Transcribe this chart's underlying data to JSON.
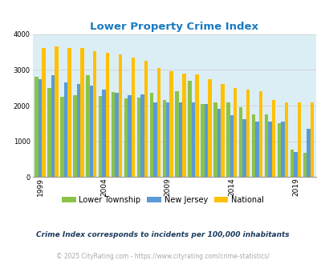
{
  "title": "Lower Property Crime Index",
  "subtitle": "Crime Index corresponds to incidents per 100,000 inhabitants",
  "footer": "© 2025 CityRating.com - https://www.cityrating.com/crime-statistics/",
  "years": [
    1999,
    2000,
    2001,
    2002,
    2003,
    2004,
    2005,
    2006,
    2007,
    2008,
    2009,
    2010,
    2011,
    2012,
    2013,
    2014,
    2015,
    2016,
    2017,
    2018,
    2019,
    2020
  ],
  "lower_township": [
    2800,
    2500,
    2250,
    2300,
    2850,
    2280,
    2380,
    2200,
    2220,
    2350,
    2150,
    2400,
    2700,
    2050,
    2100,
    2100,
    1950,
    1750,
    1750,
    1500,
    760,
    670
  ],
  "new_jersey": [
    2750,
    2850,
    2650,
    2600,
    2550,
    2450,
    2350,
    2300,
    2320,
    2100,
    2100,
    2080,
    2090,
    2050,
    1900,
    1720,
    1620,
    1550,
    1540,
    1540,
    700,
    1350
  ],
  "national": [
    3610,
    3660,
    3620,
    3610,
    3520,
    3480,
    3430,
    3340,
    3250,
    3050,
    2960,
    2900,
    2870,
    2730,
    2600,
    2500,
    2460,
    2400,
    2160,
    2100,
    2090,
    2090
  ],
  "lower_color": "#8bc34a",
  "nj_color": "#5b9bd5",
  "national_color": "#ffc000",
  "background_color": "#dceef5",
  "ylim": [
    0,
    4000
  ],
  "yticks": [
    0,
    1000,
    2000,
    3000,
    4000
  ],
  "title_color": "#1a7abf",
  "subtitle_color": "#1a3a5c",
  "footer_color": "#aaaaaa",
  "grid_color": "#cccccc",
  "tick_years": [
    1999,
    2004,
    2009,
    2014,
    2019
  ]
}
